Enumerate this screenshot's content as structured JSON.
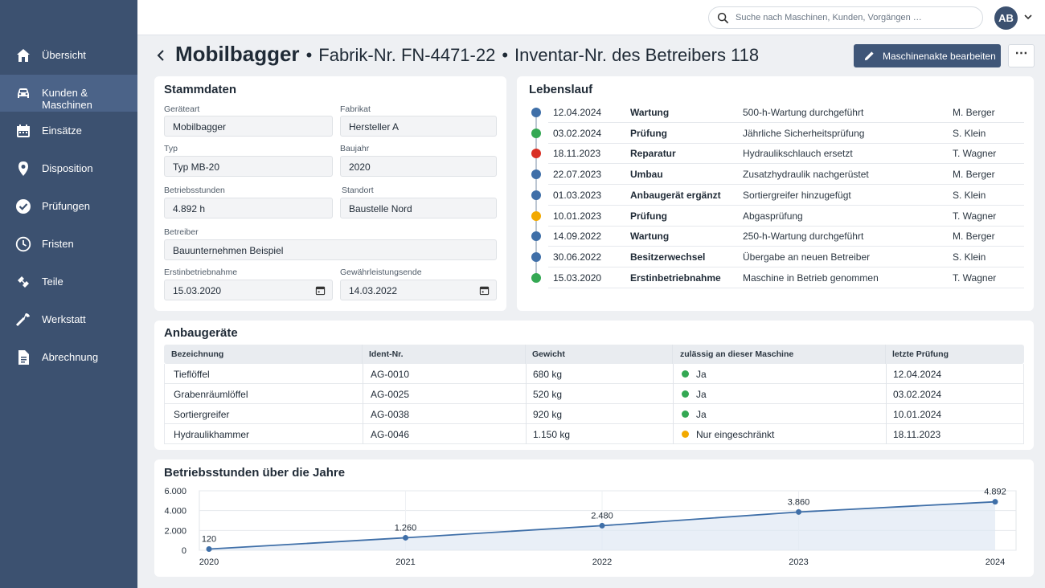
{
  "app": {
    "colors": {
      "sidebar": "#3c5170",
      "sidebar_active": "#4b6388",
      "primary": "#3f5678",
      "green": "#34a853",
      "blue": "#3f6fa8",
      "red": "#d93025",
      "orange": "#f2a900"
    }
  },
  "sidebar": {
    "items": [
      {
        "label": "Übersicht",
        "icon": "home-icon"
      },
      {
        "label": "Kunden & Maschinen",
        "icon": "car-icon",
        "active": true
      },
      {
        "label": "Einsätze",
        "icon": "calendar-icon"
      },
      {
        "label": "Disposition",
        "icon": "location-pin-icon"
      },
      {
        "label": "Prüfungen",
        "icon": "check-circle-icon"
      },
      {
        "label": "Fristen",
        "icon": "clock-icon"
      },
      {
        "label": "Teile",
        "icon": "parts-icon"
      },
      {
        "label": "Werkstatt",
        "icon": "wrench-icon"
      },
      {
        "label": "Abrechnung",
        "icon": "document-icon"
      }
    ]
  },
  "topbar": {
    "search_placeholder": "Suche nach Maschinen, Kunden, Vorgängen …",
    "avatar_initials": "AB"
  },
  "header": {
    "title": "Mobilbagger",
    "serial": "Fabrik-Nr. FN-4471-22",
    "inventory": "Inventar-Nr. des Betreibers 118",
    "edit_button": "Maschinenakte bearbeiten",
    "more_button": "⋯"
  },
  "stammdaten": {
    "title": "Stammdaten",
    "fields": {
      "geraeteart": {
        "label": "Geräteart",
        "value": "Mobilbagger"
      },
      "fabrikat": {
        "label": "Fabrikat",
        "value": "Hersteller A"
      },
      "typ": {
        "label": "Typ",
        "value": "Typ MB-20"
      },
      "baujahr": {
        "label": "Baujahr",
        "value": "2020"
      },
      "betriebsstunden": {
        "label": "Betriebsstunden",
        "value": "4.892 h"
      },
      "standort": {
        "label": "Standort",
        "value": "Baustelle Nord"
      },
      "betreiber": {
        "label": "Betreiber",
        "value": "Bauunternehmen Beispiel"
      },
      "erstinbetriebnahme": {
        "label": "Erstinbetriebnahme",
        "value": "15.03.2020"
      },
      "gewaehrleistungsende": {
        "label": "Gewährleistungsende",
        "value": "14.03.2022"
      }
    }
  },
  "lebenslauf": {
    "title": "Lebenslauf",
    "entries": [
      {
        "date": "12.04.2024",
        "type": "Wartung",
        "desc": "500-h-Wartung durchgeführt",
        "person": "M. Berger",
        "color": "#3f6fa8"
      },
      {
        "date": "03.02.2024",
        "type": "Prüfung",
        "desc": "Jährliche Sicherheitsprüfung",
        "person": "S. Klein",
        "color": "#34a853"
      },
      {
        "date": "18.11.2023",
        "type": "Reparatur",
        "desc": "Hydraulikschlauch ersetzt",
        "person": "T. Wagner",
        "color": "#d93025"
      },
      {
        "date": "22.07.2023",
        "type": "Umbau",
        "desc": "Zusatzhydraulik nachgerüstet",
        "person": "M. Berger",
        "color": "#3f6fa8"
      },
      {
        "date": "01.03.2023",
        "type": "Anbaugerät ergänzt",
        "desc": "Sortiergreifer hinzugefügt",
        "person": "S. Klein",
        "color": "#3f6fa8"
      },
      {
        "date": "10.01.2023",
        "type": "Prüfung",
        "desc": "Abgasprüfung",
        "person": "T. Wagner",
        "color": "#f2a900"
      },
      {
        "date": "14.09.2022",
        "type": "Wartung",
        "desc": "250-h-Wartung durchgeführt",
        "person": "M. Berger",
        "color": "#3f6fa8"
      },
      {
        "date": "30.06.2022",
        "type": "Besitzerwechsel",
        "desc": "Übergabe an neuen Betreiber",
        "person": "S. Klein",
        "color": "#3f6fa8"
      },
      {
        "date": "15.03.2020",
        "type": "Erstinbetriebnahme",
        "desc": "Maschine in Betrieb genommen",
        "person": "T. Wagner",
        "color": "#34a853"
      }
    ]
  },
  "anbaugeraete": {
    "title": "Anbaugeräte",
    "columns": [
      "Bezeichnung",
      "Ident-Nr.",
      "Gewicht",
      "zulässig an dieser Maschine",
      "letzte Prüfung"
    ],
    "rows": [
      {
        "name": "Tieflöffel",
        "id": "AG-0010",
        "weight": "680 kg",
        "status": "Ja",
        "status_color": "#34a853",
        "last_check": "12.04.2024"
      },
      {
        "name": "Grabenräumlöffel",
        "id": "AG-0025",
        "weight": "520 kg",
        "status": "Ja",
        "status_color": "#34a853",
        "last_check": "03.02.2024"
      },
      {
        "name": "Sortiergreifer",
        "id": "AG-0038",
        "weight": "920 kg",
        "status": "Ja",
        "status_color": "#34a853",
        "last_check": "10.01.2024"
      },
      {
        "name": "Hydraulikhammer",
        "id": "AG-0046",
        "weight": "1.150 kg",
        "status": "Nur eingeschränkt",
        "status_color": "#f2a900",
        "last_check": "18.11.2023"
      }
    ]
  },
  "chart_data": {
    "type": "area",
    "title": "Betriebsstunden über die Jahre",
    "x": [
      "2020",
      "2021",
      "2022",
      "2023",
      "2024"
    ],
    "values": [
      120,
      1260,
      2480,
      3860,
      4892
    ],
    "labels": [
      "120",
      "1.260",
      "2.480",
      "3.860",
      "4.892"
    ],
    "yticks": [
      "0",
      "2.000",
      "4.000",
      "6.000"
    ],
    "ylim": [
      0,
      6000
    ],
    "grid": true,
    "line_color": "#3f6fa8"
  }
}
